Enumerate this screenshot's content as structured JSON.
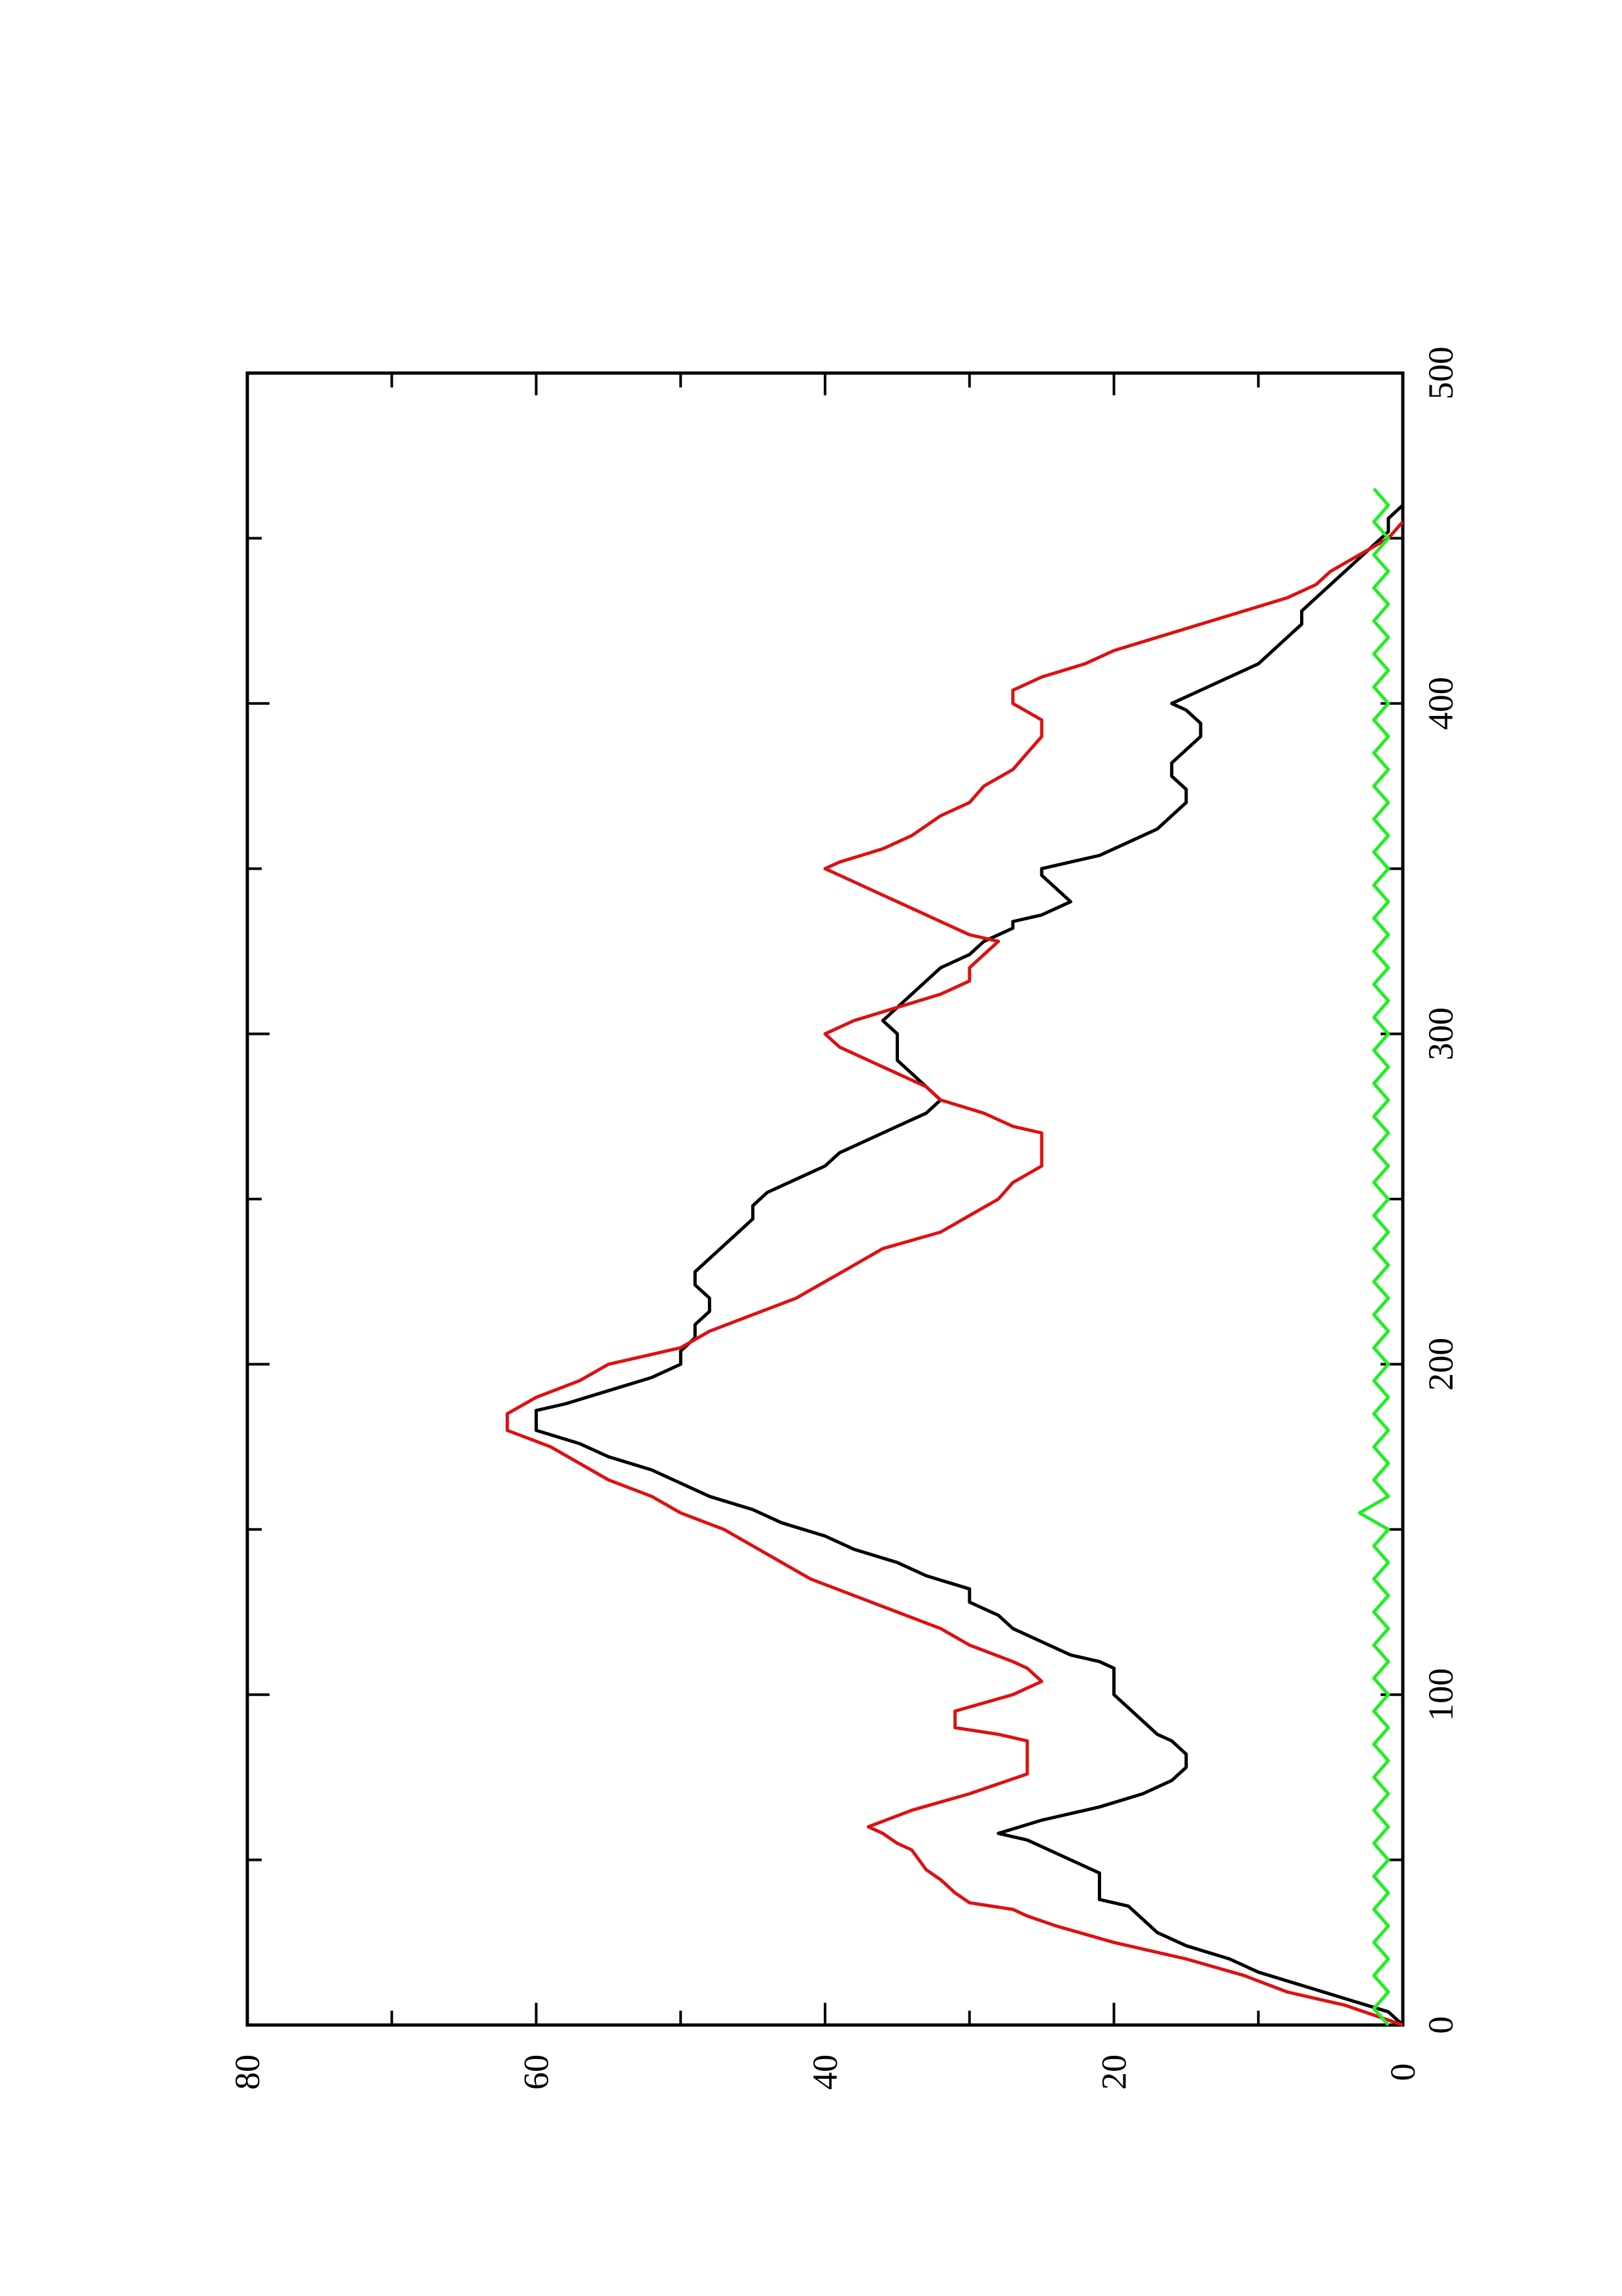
{
  "chart_data": {
    "type": "line",
    "orientation": "rotated-90-ccw",
    "title": "",
    "xlabel": "",
    "ylabel": "",
    "xlim": [
      0,
      500
    ],
    "ylim": [
      0,
      80
    ],
    "x_ticks": [
      0,
      100,
      200,
      300,
      400,
      500
    ],
    "y_ticks": [
      0,
      20,
      40,
      60,
      80
    ],
    "grid": false,
    "legend": "none",
    "series": [
      {
        "color": "#000000",
        "style": "jagged",
        "points": [
          [
            0,
            0
          ],
          [
            4,
            1
          ],
          [
            8,
            4
          ],
          [
            12,
            7
          ],
          [
            16,
            10
          ],
          [
            20,
            12
          ],
          [
            24,
            15
          ],
          [
            28,
            17
          ],
          [
            32,
            18
          ],
          [
            36,
            19
          ],
          [
            38,
            21
          ],
          [
            42,
            21
          ],
          [
            46,
            21
          ],
          [
            50,
            23
          ],
          [
            54,
            25
          ],
          [
            56,
            26
          ],
          [
            58,
            28
          ],
          [
            62,
            25
          ],
          [
            66,
            21
          ],
          [
            70,
            18
          ],
          [
            74,
            16
          ],
          [
            78,
            15
          ],
          [
            82,
            15
          ],
          [
            86,
            16
          ],
          [
            88,
            17
          ],
          [
            92,
            18
          ],
          [
            96,
            19
          ],
          [
            100,
            20
          ],
          [
            104,
            20
          ],
          [
            108,
            20
          ],
          [
            110,
            21
          ],
          [
            112,
            23
          ],
          [
            116,
            25
          ],
          [
            120,
            27
          ],
          [
            124,
            28
          ],
          [
            128,
            30
          ],
          [
            132,
            30
          ],
          [
            136,
            33
          ],
          [
            140,
            35
          ],
          [
            144,
            38
          ],
          [
            148,
            40
          ],
          [
            152,
            43
          ],
          [
            156,
            45
          ],
          [
            160,
            48
          ],
          [
            164,
            50
          ],
          [
            168,
            52
          ],
          [
            172,
            55
          ],
          [
            176,
            57
          ],
          [
            180,
            60
          ],
          [
            182,
            60
          ],
          [
            186,
            60
          ],
          [
            188,
            58
          ],
          [
            192,
            55
          ],
          [
            196,
            52
          ],
          [
            200,
            50
          ],
          [
            204,
            50
          ],
          [
            208,
            49
          ],
          [
            212,
            49
          ],
          [
            216,
            48
          ],
          [
            220,
            48
          ],
          [
            224,
            49
          ],
          [
            228,
            49
          ],
          [
            232,
            48
          ],
          [
            236,
            47
          ],
          [
            240,
            46
          ],
          [
            244,
            45
          ],
          [
            248,
            45
          ],
          [
            252,
            44
          ],
          [
            256,
            42
          ],
          [
            260,
            40
          ],
          [
            264,
            39
          ],
          [
            268,
            37
          ],
          [
            272,
            35
          ],
          [
            276,
            33
          ],
          [
            280,
            32
          ],
          [
            284,
            33
          ],
          [
            288,
            34
          ],
          [
            292,
            35
          ],
          [
            296,
            35
          ],
          [
            300,
            35
          ],
          [
            304,
            36
          ],
          [
            308,
            35
          ],
          [
            312,
            34
          ],
          [
            316,
            33
          ],
          [
            320,
            32
          ],
          [
            324,
            30
          ],
          [
            328,
            29
          ],
          [
            332,
            27
          ],
          [
            334,
            27
          ],
          [
            336,
            25
          ],
          [
            340,
            23
          ],
          [
            344,
            24
          ],
          [
            348,
            25
          ],
          [
            350,
            25
          ],
          [
            354,
            21
          ],
          [
            358,
            19
          ],
          [
            362,
            17
          ],
          [
            366,
            16
          ],
          [
            370,
            15
          ],
          [
            374,
            15
          ],
          [
            378,
            16
          ],
          [
            382,
            16
          ],
          [
            386,
            15
          ],
          [
            390,
            14
          ],
          [
            394,
            14
          ],
          [
            398,
            15
          ],
          [
            400,
            16
          ],
          [
            404,
            14
          ],
          [
            408,
            12
          ],
          [
            412,
            10
          ],
          [
            416,
            9
          ],
          [
            420,
            8
          ],
          [
            424,
            7
          ],
          [
            428,
            7
          ],
          [
            432,
            6
          ],
          [
            436,
            5
          ],
          [
            440,
            4
          ],
          [
            444,
            3
          ],
          [
            448,
            2
          ],
          [
            452,
            1
          ],
          [
            456,
            1
          ],
          [
            460,
            0
          ],
          [
            463,
            0
          ]
        ]
      },
      {
        "color": "#dd1111",
        "style": "staircase",
        "points": [
          [
            0,
            0
          ],
          [
            3,
            2
          ],
          [
            6,
            4
          ],
          [
            10,
            8
          ],
          [
            15,
            11
          ],
          [
            20,
            15
          ],
          [
            25,
            20
          ],
          [
            30,
            24
          ],
          [
            33,
            26
          ],
          [
            35,
            27
          ],
          [
            37,
            30
          ],
          [
            40,
            31
          ],
          [
            44,
            32
          ],
          [
            47,
            33
          ],
          [
            53,
            34
          ],
          [
            55,
            35
          ],
          [
            58,
            36
          ],
          [
            60,
            37
          ],
          [
            65,
            34
          ],
          [
            70,
            30
          ],
          [
            76,
            26
          ],
          [
            82,
            26
          ],
          [
            86,
            26
          ],
          [
            88,
            28
          ],
          [
            90,
            31
          ],
          [
            95,
            31
          ],
          [
            100,
            27
          ],
          [
            104,
            25
          ],
          [
            108,
            26
          ],
          [
            110,
            27
          ],
          [
            115,
            30
          ],
          [
            120,
            32
          ],
          [
            125,
            35
          ],
          [
            130,
            38
          ],
          [
            135,
            41
          ],
          [
            140,
            43
          ],
          [
            145,
            45
          ],
          [
            150,
            47
          ],
          [
            155,
            50
          ],
          [
            160,
            52
          ],
          [
            165,
            55
          ],
          [
            170,
            57
          ],
          [
            175,
            59
          ],
          [
            180,
            62
          ],
          [
            185,
            62
          ],
          [
            190,
            60
          ],
          [
            195,
            57
          ],
          [
            200,
            55
          ],
          [
            205,
            50
          ],
          [
            210,
            48
          ],
          [
            215,
            45
          ],
          [
            220,
            42
          ],
          [
            225,
            40
          ],
          [
            230,
            38
          ],
          [
            235,
            36
          ],
          [
            240,
            32
          ],
          [
            245,
            30
          ],
          [
            250,
            28
          ],
          [
            255,
            27
          ],
          [
            260,
            25
          ],
          [
            265,
            25
          ],
          [
            270,
            25
          ],
          [
            272,
            27
          ],
          [
            276,
            29
          ],
          [
            280,
            32
          ],
          [
            284,
            33
          ],
          [
            288,
            35
          ],
          [
            292,
            37
          ],
          [
            296,
            39
          ],
          [
            300,
            40
          ],
          [
            304,
            38
          ],
          [
            308,
            35
          ],
          [
            312,
            32
          ],
          [
            316,
            30
          ],
          [
            320,
            30
          ],
          [
            324,
            29
          ],
          [
            328,
            28
          ],
          [
            330,
            30
          ],
          [
            334,
            32
          ],
          [
            338,
            34
          ],
          [
            342,
            36
          ],
          [
            346,
            38
          ],
          [
            350,
            40
          ],
          [
            352,
            39
          ],
          [
            356,
            36
          ],
          [
            360,
            34
          ],
          [
            366,
            32
          ],
          [
            370,
            30
          ],
          [
            375,
            29
          ],
          [
            380,
            27
          ],
          [
            385,
            26
          ],
          [
            390,
            25
          ],
          [
            395,
            25
          ],
          [
            400,
            27
          ],
          [
            404,
            27
          ],
          [
            408,
            25
          ],
          [
            412,
            22
          ],
          [
            416,
            20
          ],
          [
            420,
            17
          ],
          [
            424,
            14
          ],
          [
            428,
            11
          ],
          [
            432,
            8
          ],
          [
            436,
            6
          ],
          [
            440,
            5
          ],
          [
            445,
            3
          ],
          [
            450,
            1
          ],
          [
            455,
            0
          ]
        ]
      },
      {
        "color": "#22ee22",
        "style": "noisy",
        "points": [
          [
            0,
            1
          ],
          [
            5,
            2
          ],
          [
            10,
            1
          ],
          [
            15,
            2
          ],
          [
            20,
            1
          ],
          [
            25,
            2
          ],
          [
            30,
            1
          ],
          [
            35,
            2
          ],
          [
            40,
            1
          ],
          [
            45,
            2
          ],
          [
            50,
            1
          ],
          [
            55,
            2
          ],
          [
            60,
            1
          ],
          [
            65,
            2
          ],
          [
            70,
            1
          ],
          [
            75,
            2
          ],
          [
            80,
            1
          ],
          [
            85,
            2
          ],
          [
            90,
            1
          ],
          [
            95,
            2
          ],
          [
            100,
            1
          ],
          [
            105,
            2
          ],
          [
            110,
            1
          ],
          [
            115,
            2
          ],
          [
            120,
            1
          ],
          [
            125,
            2
          ],
          [
            130,
            1
          ],
          [
            135,
            2
          ],
          [
            140,
            1
          ],
          [
            145,
            2
          ],
          [
            150,
            1
          ],
          [
            155,
            3
          ],
          [
            160,
            1
          ],
          [
            165,
            2
          ],
          [
            170,
            1
          ],
          [
            175,
            2
          ],
          [
            180,
            1
          ],
          [
            185,
            2
          ],
          [
            190,
            1
          ],
          [
            195,
            2
          ],
          [
            200,
            1
          ],
          [
            205,
            2
          ],
          [
            210,
            1
          ],
          [
            215,
            2
          ],
          [
            220,
            1
          ],
          [
            225,
            2
          ],
          [
            230,
            1
          ],
          [
            235,
            2
          ],
          [
            240,
            1
          ],
          [
            245,
            2
          ],
          [
            250,
            1
          ],
          [
            255,
            2
          ],
          [
            260,
            1
          ],
          [
            265,
            2
          ],
          [
            270,
            1
          ],
          [
            275,
            2
          ],
          [
            280,
            1
          ],
          [
            285,
            2
          ],
          [
            290,
            1
          ],
          [
            295,
            2
          ],
          [
            300,
            1
          ],
          [
            305,
            2
          ],
          [
            310,
            1
          ],
          [
            315,
            2
          ],
          [
            320,
            1
          ],
          [
            325,
            2
          ],
          [
            330,
            1
          ],
          [
            335,
            2
          ],
          [
            340,
            1
          ],
          [
            345,
            2
          ],
          [
            350,
            1
          ],
          [
            355,
            2
          ],
          [
            360,
            1
          ],
          [
            365,
            2
          ],
          [
            370,
            1
          ],
          [
            375,
            2
          ],
          [
            380,
            1
          ],
          [
            385,
            2
          ],
          [
            390,
            1
          ],
          [
            395,
            2
          ],
          [
            400,
            1
          ],
          [
            405,
            2
          ],
          [
            410,
            1
          ],
          [
            415,
            2
          ],
          [
            420,
            1
          ],
          [
            425,
            2
          ],
          [
            430,
            1
          ],
          [
            435,
            2
          ],
          [
            440,
            1
          ],
          [
            445,
            2
          ],
          [
            450,
            1
          ],
          [
            455,
            2
          ],
          [
            460,
            1
          ],
          [
            465,
            2
          ]
        ]
      }
    ]
  }
}
